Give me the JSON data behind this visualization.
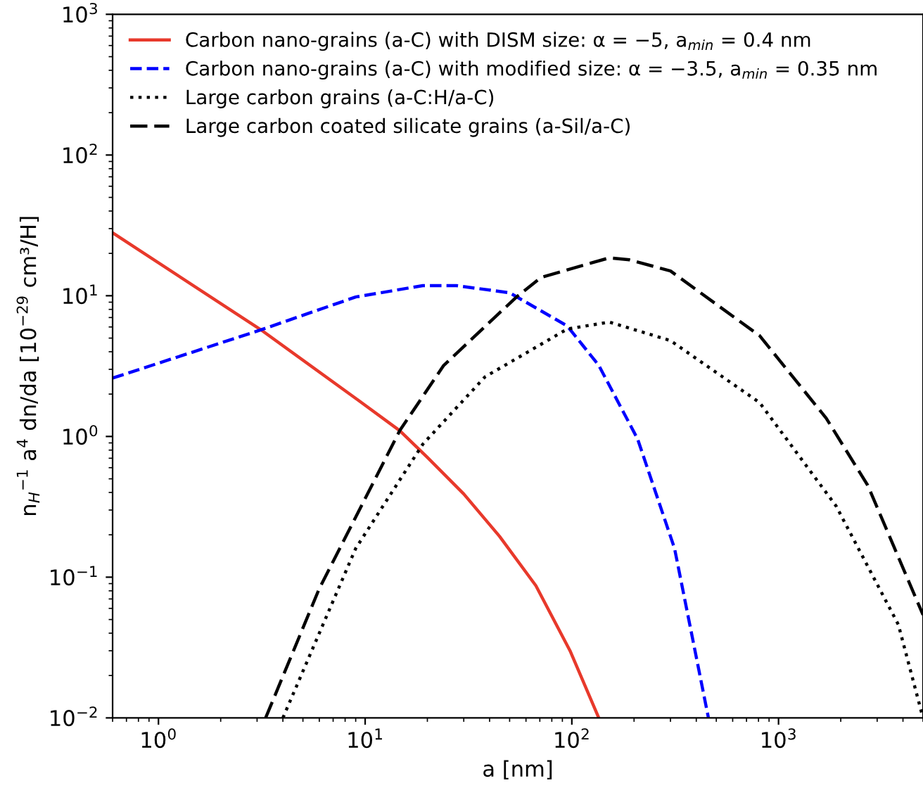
{
  "chart_data": {
    "type": "line",
    "xlabel": "a [nm]",
    "ylabel": "n$_{H}$$^{−1}$ a$^{4}$ dn/da [10$^{−29}$ cm³/H]",
    "log": "xy",
    "grid": false,
    "legend": "top left",
    "marker": "none",
    "xlim": [
      0.6,
      5000
    ],
    "ylim": [
      0.01,
      1000
    ],
    "xticks": [
      {
        "value": 1,
        "label": "10$^{0}$"
      },
      {
        "value": 10,
        "label": "10$^{1}$"
      },
      {
        "value": 100,
        "label": "10$^{2}$"
      },
      {
        "value": 1000,
        "label": "10$^{3}$"
      }
    ],
    "yticks": [
      {
        "value": 0.01,
        "label": "10$^{−2}$"
      },
      {
        "value": 0.1,
        "label": "10$^{−1}$"
      },
      {
        "value": 1,
        "label": "10$^{0}$"
      },
      {
        "value": 10,
        "label": "10$^{1}$"
      },
      {
        "value": 100,
        "label": "10$^{2}$"
      },
      {
        "value": 1000,
        "label": "10$^{3}$"
      }
    ],
    "series": [
      {
        "name": "Carbon nano-grains (a-C) with DISM size: α = −5, a$_{min}$ = 0.4 nm",
        "color": "#e8392b",
        "line_style": "solid",
        "x": [
          0.6,
          3.2,
          9.3,
          14.7,
          20,
          30,
          44.7,
          67,
          98,
          135
        ],
        "values": [
          28,
          5.6,
          1.8,
          1.1,
          0.71,
          0.39,
          0.195,
          0.087,
          0.03,
          0.01
        ]
      },
      {
        "name": "Carbon nano-grains (a-C) with modified size: α = −3.5, a$_{min}$ = 0.35 nm",
        "color": "#0000ff",
        "line_style": "dashed",
        "x": [
          0.6,
          3.0,
          9,
          19,
          27.6,
          50,
          95,
          135,
          208,
          314,
          458
        ],
        "values": [
          2.6,
          5.6,
          9.8,
          11.8,
          11.8,
          10.5,
          6.1,
          3.2,
          0.96,
          0.16,
          0.01
        ]
      },
      {
        "name": "Large carbon grains (a-C:H/a-C)",
        "color": "#000000",
        "line_style": "dotted",
        "x": [
          4.0,
          9,
          19,
          38,
          95,
          152,
          300,
          810,
          1900,
          3800,
          5000
        ],
        "values": [
          0.01,
          0.16,
          0.88,
          2.65,
          5.8,
          6.5,
          4.8,
          1.74,
          0.32,
          0.046,
          0.01
        ]
      },
      {
        "name": "Large carbon coated silicate grains (a-Sil/a-C)",
        "color": "#000000",
        "line_style": "dashed",
        "x": [
          3.3,
          6.0,
          14.7,
          24,
          54,
          71,
          152,
          190,
          300,
          810,
          1700,
          2700,
          5000
        ],
        "values": [
          0.01,
          0.083,
          1.1,
          3.2,
          9.8,
          13.5,
          18.6,
          18,
          15,
          5.2,
          1.35,
          0.45,
          0.054
        ]
      }
    ]
  }
}
